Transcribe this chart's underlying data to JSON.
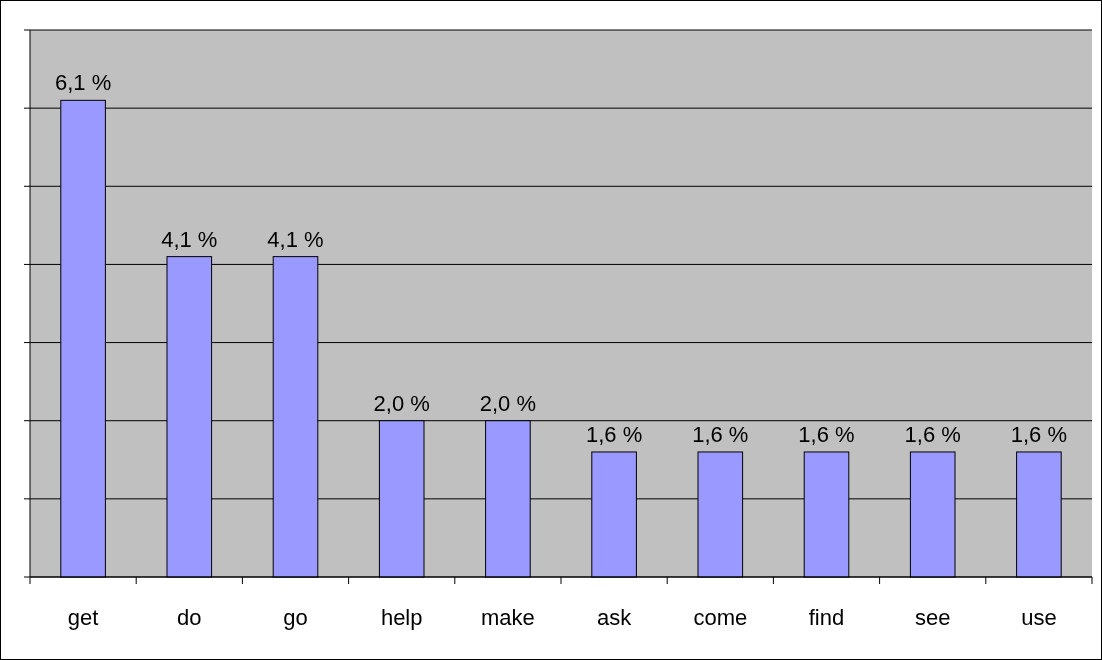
{
  "chart_data": {
    "type": "bar",
    "categories": [
      "get",
      "do",
      "go",
      "help",
      "make",
      "ask",
      "come",
      "find",
      "see",
      "use"
    ],
    "values": [
      6.1,
      4.1,
      4.1,
      2.0,
      2.0,
      1.6,
      1.6,
      1.6,
      1.6,
      1.6
    ],
    "value_labels": [
      "6,1 %",
      "4,1 %",
      "4,1 %",
      "2,0 %",
      "2,0 %",
      "1,6 %",
      "1,6 %",
      "1,6 %",
      "1,6 %",
      "1,6 %"
    ],
    "color": "#9999ff",
    "ylim": [
      0,
      7
    ],
    "yticks": [
      {
        "value": 0,
        "label": null
      },
      {
        "value": 1,
        "label": null
      },
      {
        "value": 2,
        "label": null
      },
      {
        "value": 3,
        "label": null
      },
      {
        "value": 4,
        "label": null
      },
      {
        "value": 5,
        "label": null
      },
      {
        "value": 6,
        "label": null
      },
      {
        "value": 7,
        "label": null
      }
    ],
    "grid": "y",
    "tick_labels": "x"
  }
}
